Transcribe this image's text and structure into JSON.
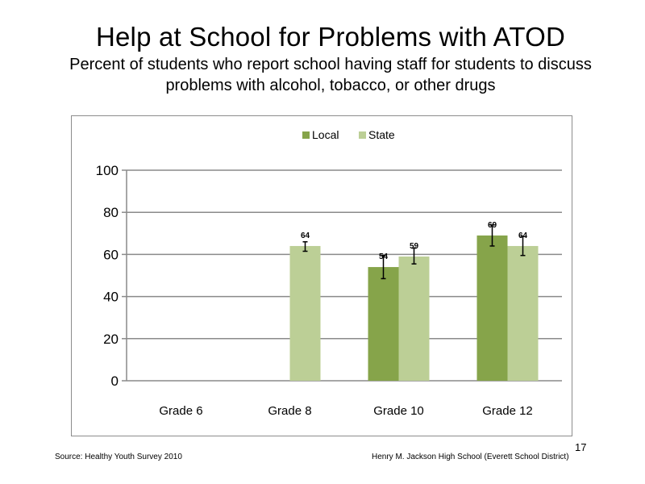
{
  "slide": {
    "title": "Help at School for Problems with ATOD",
    "subtitle": "Percent of students who report school having staff for students to discuss problems with alcohol, tobacco, or other drugs",
    "source": "Source: Healthy Youth Survey 2010",
    "school": "Henry M. Jackson High School (Everett School District)",
    "page_number": "17"
  },
  "chart_data": {
    "type": "bar",
    "categories": [
      "Grade 6",
      "Grade 8",
      "Grade 10",
      "Grade 12"
    ],
    "series": [
      {
        "name": "Local",
        "color": "#86a44a",
        "values": [
          null,
          null,
          54,
          69
        ],
        "labels": [
          "",
          "",
          "54",
          "69"
        ],
        "error_low": [
          null,
          null,
          48.5,
          64
        ],
        "error_high": [
          null,
          null,
          59.5,
          74
        ]
      },
      {
        "name": "State",
        "color": "#bccf96",
        "values": [
          null,
          64,
          59,
          64
        ],
        "labels": [
          "",
          "64",
          "59",
          "64"
        ],
        "error_low": [
          null,
          61.5,
          55.5,
          59.5
        ],
        "error_high": [
          null,
          66,
          63,
          68.5
        ]
      }
    ],
    "ylim": [
      0,
      100
    ],
    "yticks": [
      "0",
      "20",
      "40",
      "60",
      "80",
      "100"
    ],
    "ytick_values": [
      0,
      20,
      40,
      60,
      80,
      100
    ],
    "grid": true,
    "legend_position": "top-center"
  }
}
